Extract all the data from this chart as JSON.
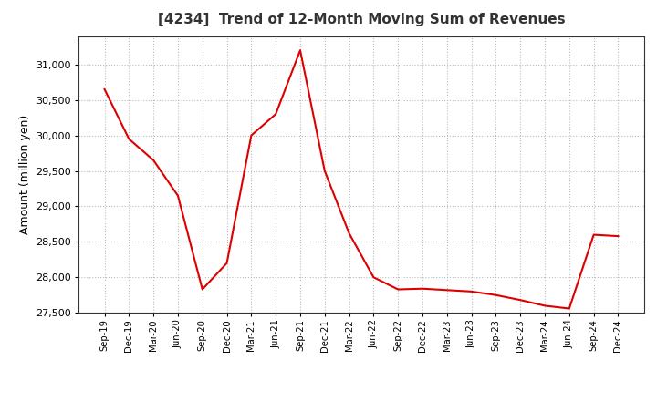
{
  "title": "[4234]  Trend of 12-Month Moving Sum of Revenues",
  "ylabel": "Amount (million yen)",
  "line_color": "#dd0000",
  "background_color": "#ffffff",
  "plot_bg_color": "#ffffff",
  "grid_color": "#bbbbbb",
  "ylim": [
    27500,
    31400
  ],
  "yticks": [
    27500,
    28000,
    28500,
    29000,
    29500,
    30000,
    30500,
    31000
  ],
  "x_labels": [
    "Sep-19",
    "Dec-19",
    "Mar-20",
    "Jun-20",
    "Sep-20",
    "Dec-20",
    "Mar-21",
    "Jun-21",
    "Sep-21",
    "Dec-21",
    "Mar-22",
    "Jun-22",
    "Sep-22",
    "Dec-22",
    "Mar-23",
    "Jun-23",
    "Sep-23",
    "Dec-23",
    "Mar-24",
    "Jun-24",
    "Sep-24",
    "Dec-24"
  ],
  "values": [
    30650,
    29950,
    29650,
    29150,
    27830,
    28200,
    30000,
    30300,
    31200,
    29500,
    28620,
    28000,
    27830,
    27840,
    27820,
    27800,
    27750,
    27680,
    27600,
    27560,
    28600,
    28580
  ]
}
